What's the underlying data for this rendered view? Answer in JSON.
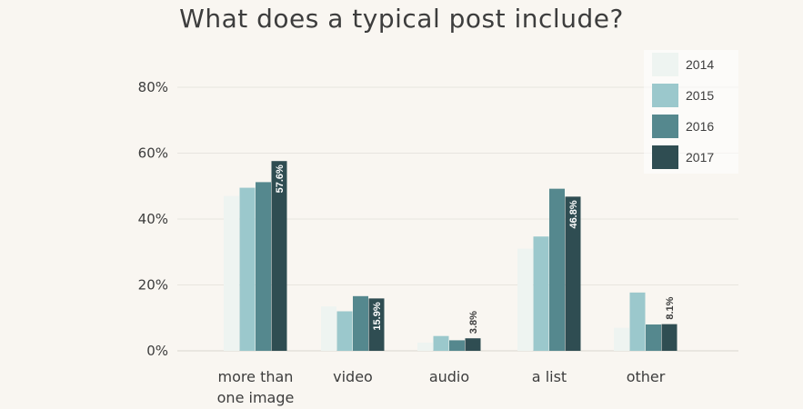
{
  "title": "What does a typical post include?",
  "chart_data": {
    "type": "bar",
    "title": "What does a typical post include?",
    "categories": [
      "more than one image",
      "video",
      "audio",
      "a list",
      "other"
    ],
    "category_lines": [
      [
        "more than",
        "one image"
      ],
      [
        "video"
      ],
      [
        "audio"
      ],
      [
        "a list"
      ],
      [
        "other"
      ]
    ],
    "series": [
      {
        "name": "2014",
        "color": "#eef4f1",
        "values": [
          47,
          13.5,
          2.5,
          31,
          7
        ]
      },
      {
        "name": "2015",
        "color": "#9bc8cc",
        "values": [
          49.5,
          12,
          4.5,
          34.7,
          17.7
        ]
      },
      {
        "name": "2016",
        "color": "#55888e",
        "values": [
          51.2,
          16.6,
          3.2,
          49.2,
          8
        ]
      },
      {
        "name": "2017",
        "color": "#2f4d52",
        "values": [
          57.6,
          15.9,
          3.8,
          46.8,
          8.1
        ]
      }
    ],
    "data_labels": [
      "57.6%",
      "15.9%",
      "3.8%",
      "46.8%",
      "8.1%"
    ],
    "y_ticks": [
      0,
      20,
      40,
      60,
      80
    ],
    "y_tick_labels": [
      "0%",
      "20%",
      "40%",
      "60%",
      "80%"
    ],
    "ylim": [
      0,
      80
    ],
    "grid": true,
    "legend_position": "top-right",
    "xlabel": "",
    "ylabel": ""
  }
}
